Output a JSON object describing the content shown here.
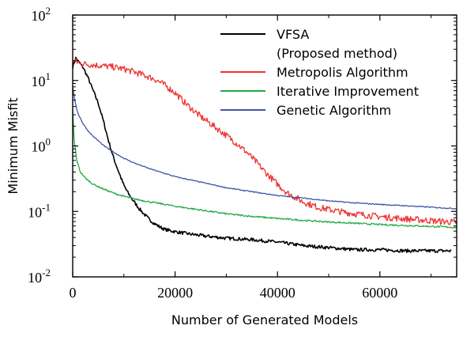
{
  "chart_data": {
    "type": "line",
    "xlabel": "Number of Generated Models",
    "ylabel": "Minimum Misfit",
    "xlim": [
      0,
      75000
    ],
    "ylim": [
      0.01,
      100
    ],
    "yscale": "log",
    "grid": false,
    "legend_position": "top-right",
    "x_ticks": [
      {
        "value": 0,
        "label": "0"
      },
      {
        "value": 20000,
        "label": "20000"
      },
      {
        "value": 40000,
        "label": "40000"
      },
      {
        "value": 60000,
        "label": "60000"
      }
    ],
    "y_ticks": [
      {
        "value": 0.01,
        "base": "10",
        "exp": "-2"
      },
      {
        "value": 0.1,
        "base": "10",
        "exp": "-1"
      },
      {
        "value": 1,
        "base": "10",
        "exp": "0"
      },
      {
        "value": 10,
        "base": "10",
        "exp": "1"
      },
      {
        "value": 100,
        "base": "10",
        "exp": "2"
      }
    ],
    "series": [
      {
        "name": "VFSA",
        "name2": "(Proposed method)",
        "color": "#000000",
        "noise": 0.1,
        "x": [
          0,
          600,
          1000,
          2000,
          3000,
          4000,
          5000,
          6000,
          7000,
          8000,
          9000,
          10000,
          11000,
          12000,
          13000,
          14000,
          15000,
          16000,
          17000,
          18000,
          20000,
          23000,
          26000,
          30000,
          35000,
          40000,
          45000,
          50000,
          55000,
          60000,
          65000,
          70000,
          74000
        ],
        "y": [
          16,
          22,
          20,
          16,
          11,
          7,
          4.5,
          2.4,
          1.2,
          0.65,
          0.4,
          0.25,
          0.18,
          0.14,
          0.11,
          0.09,
          0.075,
          0.065,
          0.058,
          0.053,
          0.049,
          0.045,
          0.042,
          0.039,
          0.037,
          0.034,
          0.03,
          0.028,
          0.026,
          0.026,
          0.025,
          0.025,
          0.025
        ]
      },
      {
        "name": "Metropolis Algorithm",
        "color": "#ee3333",
        "noise": 0.2,
        "x": [
          0,
          2000,
          5000,
          8000,
          10000,
          12000,
          14000,
          16000,
          18000,
          20000,
          22000,
          25000,
          28000,
          30000,
          32000,
          34000,
          36000,
          38000,
          40000,
          42000,
          45000,
          48000,
          52000,
          56000,
          60000,
          65000,
          70000,
          75000
        ],
        "y": [
          20,
          18,
          17,
          16,
          15,
          13.5,
          12,
          10.5,
          8.5,
          6.5,
          4.5,
          2.8,
          1.9,
          1.45,
          1.1,
          0.8,
          0.55,
          0.37,
          0.26,
          0.19,
          0.14,
          0.115,
          0.1,
          0.09,
          0.083,
          0.077,
          0.072,
          0.068
        ]
      },
      {
        "name": "Iterative Improvement",
        "color": "#22aa44",
        "noise": 0.05,
        "x": [
          0,
          300,
          800,
          1500,
          2500,
          4000,
          6000,
          8000,
          10000,
          12000,
          15000,
          18000,
          20000,
          25000,
          30000,
          35000,
          40000,
          45000,
          50000,
          55000,
          60000,
          65000,
          70000,
          75000
        ],
        "y": [
          3.5,
          1.2,
          0.6,
          0.4,
          0.32,
          0.26,
          0.22,
          0.19,
          0.17,
          0.155,
          0.14,
          0.128,
          0.12,
          0.105,
          0.092,
          0.084,
          0.078,
          0.073,
          0.069,
          0.066,
          0.063,
          0.061,
          0.059,
          0.057
        ]
      },
      {
        "name": "Genetic Algorithm",
        "color": "#4455aa",
        "noise": 0.03,
        "x": [
          0,
          500,
          1000,
          2000,
          3000,
          4000,
          5000,
          6000,
          8000,
          10000,
          12000,
          15000,
          18000,
          20000,
          25000,
          30000,
          35000,
          40000,
          45000,
          50000,
          55000,
          60000,
          65000,
          70000,
          75000
        ],
        "y": [
          8,
          4.5,
          3.2,
          2.2,
          1.7,
          1.4,
          1.2,
          1.02,
          0.8,
          0.65,
          0.55,
          0.45,
          0.38,
          0.34,
          0.28,
          0.23,
          0.2,
          0.175,
          0.16,
          0.145,
          0.135,
          0.128,
          0.122,
          0.116,
          0.11
        ]
      }
    ]
  }
}
